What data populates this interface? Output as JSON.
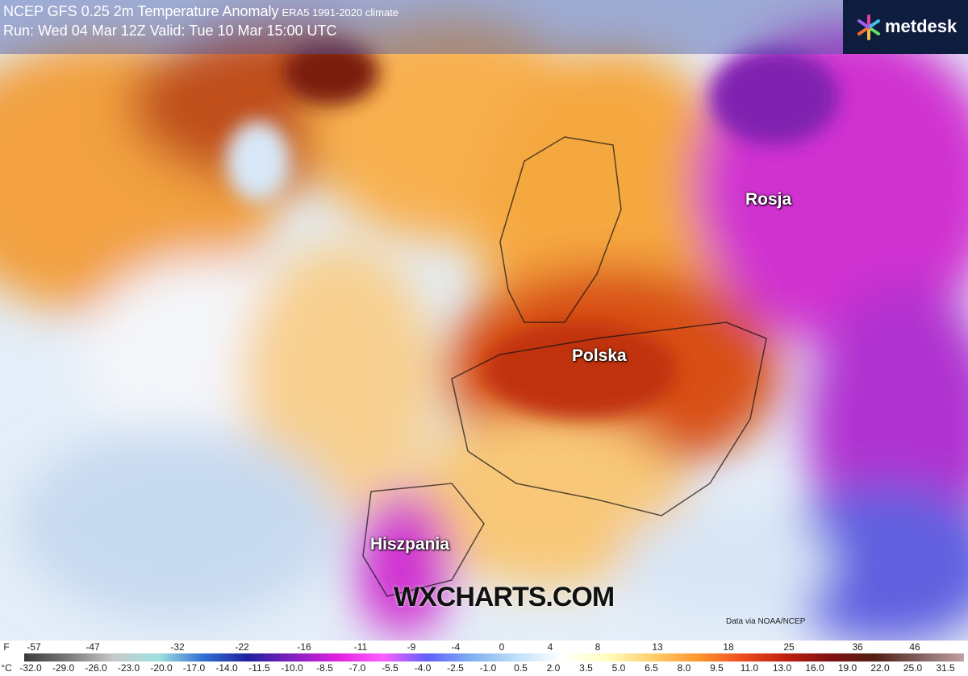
{
  "header": {
    "title": "NCEP GFS 0.25 2m Temperature Anomaly",
    "climate": "ERA5 1991-2020 climate",
    "run": "Run: Wed 04 Mar 12Z Valid: Tue 10 Mar 15:00 UTC"
  },
  "logo": "metdesk",
  "labels": [
    "Rosja",
    "Polska",
    "Hiszpania"
  ],
  "watermark": "WXCHARTS.COM",
  "credit": "Data via NOAA/NCEP",
  "legend": {
    "f_unit": "F",
    "f_labels": [
      "-57",
      "-47",
      "-32",
      "-22",
      "-16",
      "-11",
      "-9",
      "-4",
      "0",
      "4",
      "8",
      "13",
      "18",
      "25",
      "36",
      "46"
    ],
    "c_unit": "°C",
    "c_labels": [
      "-32.0",
      "-29.0",
      "-26.0",
      "-23.0",
      "-20.0",
      "-17.0",
      "-14.0",
      "-11.5",
      "-10.0",
      "-8.5",
      "-7.0",
      "-5.5",
      "-4.0",
      "-2.5",
      "-1.0",
      "0.5",
      "2.0",
      "3.5",
      "5.0",
      "6.5",
      "8.0",
      "9.5",
      "11.0",
      "13.0",
      "16.0",
      "19.0",
      "22.0",
      "25.0",
      "31.5"
    ]
  }
}
